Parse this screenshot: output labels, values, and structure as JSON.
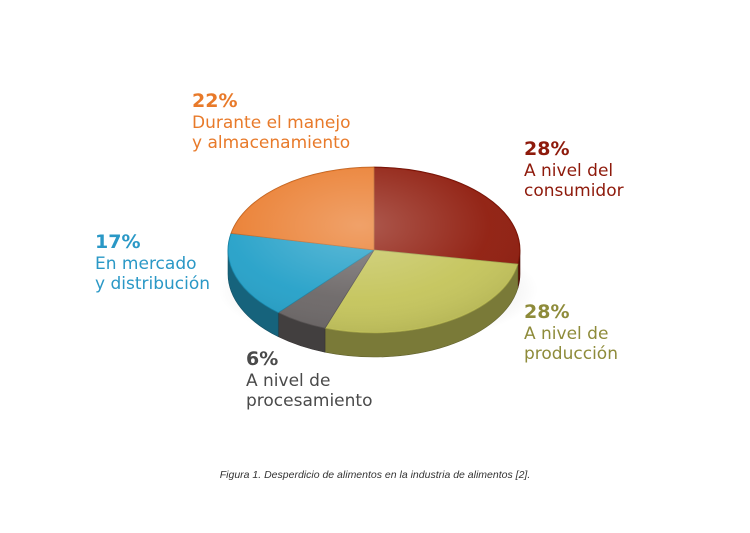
{
  "chart_data": {
    "type": "pie",
    "title": "",
    "slices": [
      {
        "label_lines": [
          "A nivel del",
          "consumidor"
        ],
        "value": 28,
        "pct_label": "28%",
        "color": "#8e1a0b"
      },
      {
        "label_lines": [
          "A nivel de",
          "producción"
        ],
        "value": 28,
        "pct_label": "28%",
        "color": "#c4c45a"
      },
      {
        "label_lines": [
          "A nivel de",
          "procesamiento"
        ],
        "value": 6,
        "pct_label": "6%",
        "color": "#6b6666"
      },
      {
        "label_lines": [
          "En mercado",
          "y distribución"
        ],
        "value": 17,
        "pct_label": "17%",
        "color": "#23a0c8"
      },
      {
        "label_lines": [
          "Durante el manejo",
          "y almacenamiento"
        ],
        "value": 22,
        "pct_label": "22%",
        "color": "#ea7d2f"
      }
    ],
    "label_colors": [
      "#8e1a0b",
      "#8e8b3a",
      "#4a4a4a",
      "#2a98c6",
      "#e87a2a"
    ]
  },
  "caption": "Figura 1. Desperdicio de alimentos en la industria de alimentos [2]."
}
